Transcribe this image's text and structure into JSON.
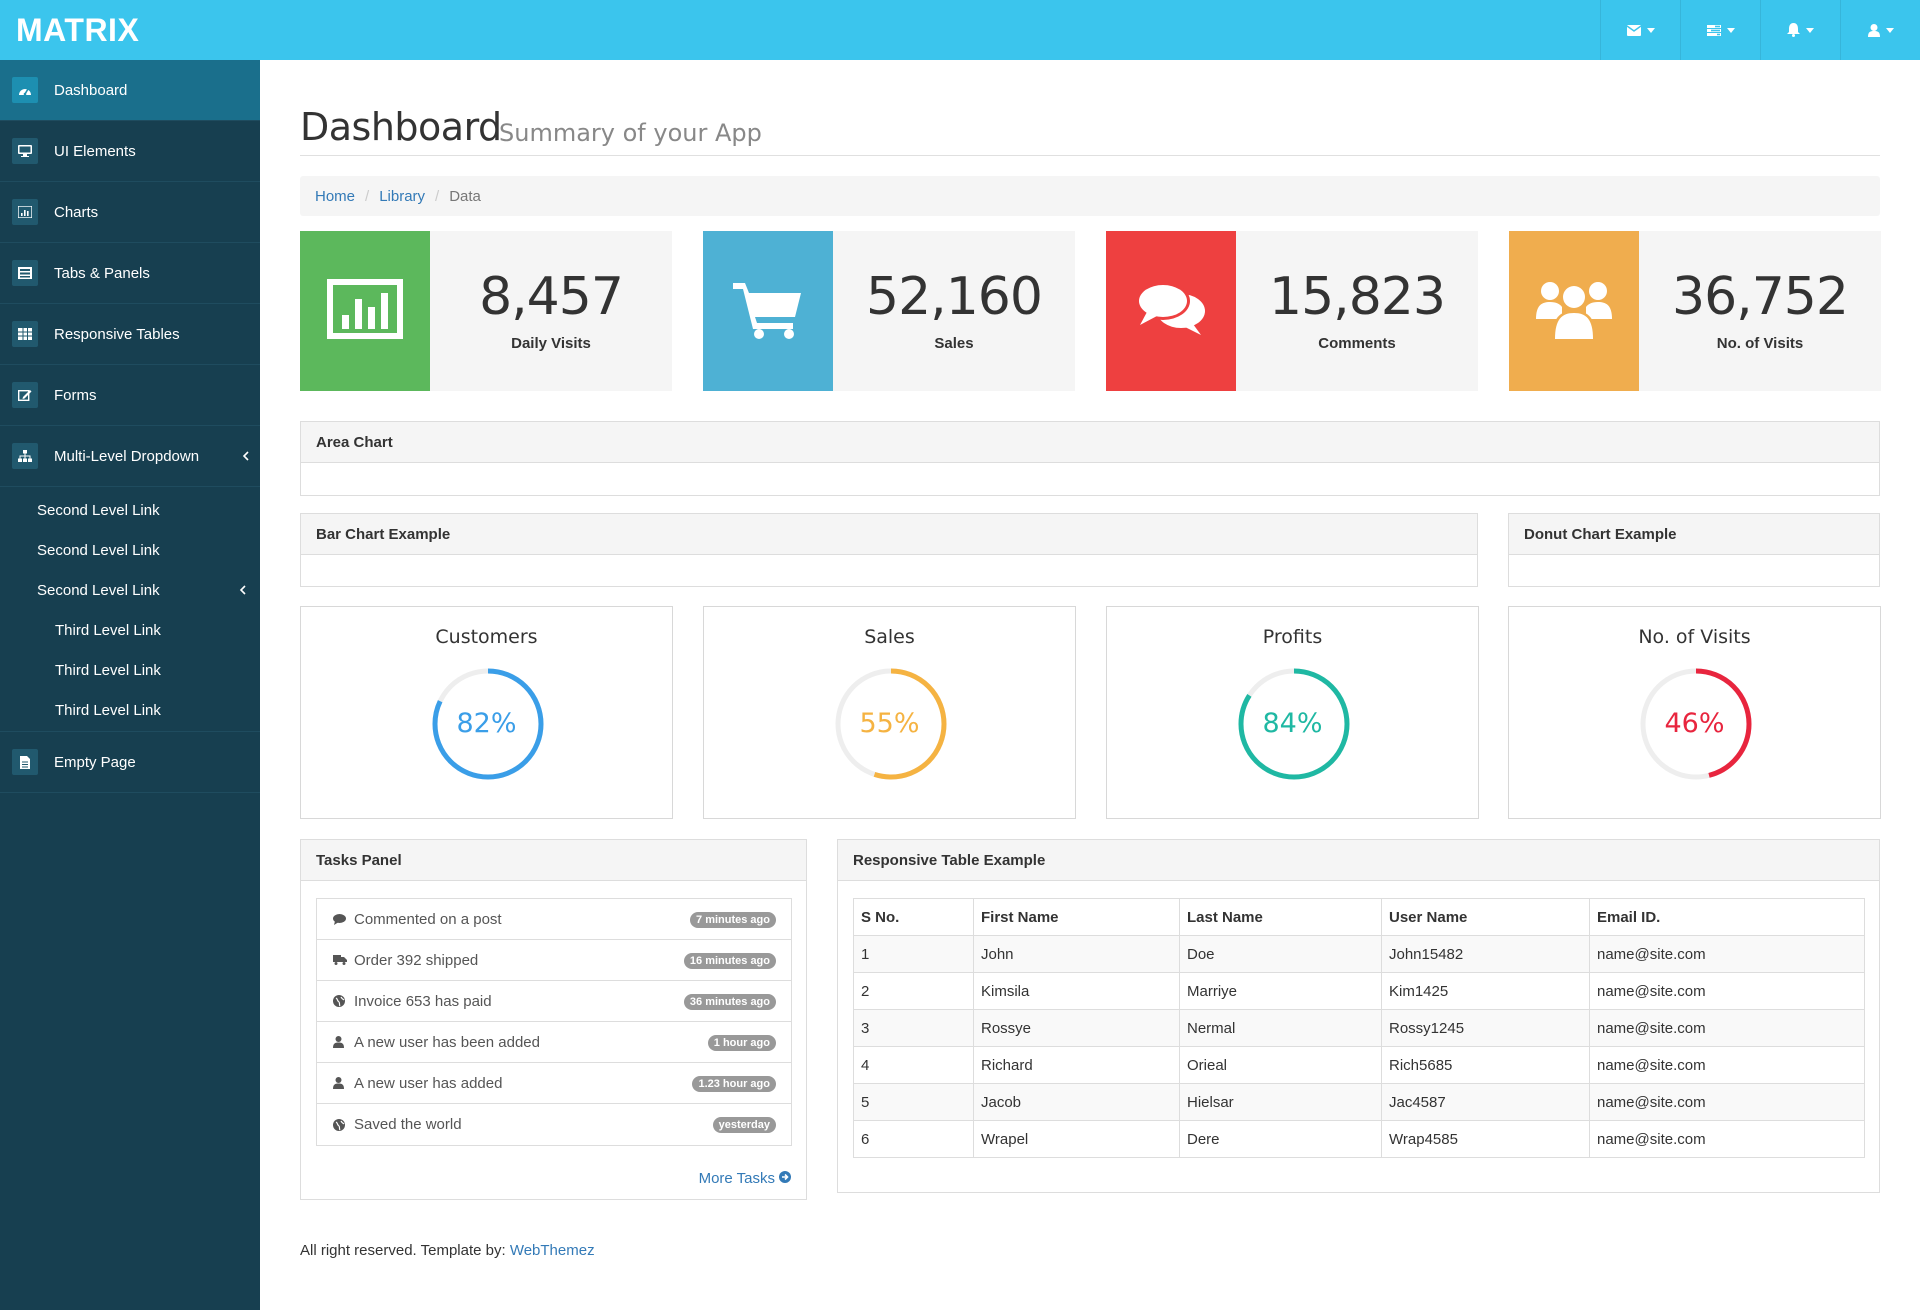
{
  "app": {
    "brand": "MATRIX"
  },
  "topnav": [
    {
      "icon": "envelope-icon"
    },
    {
      "icon": "tasks-icon"
    },
    {
      "icon": "bell-icon"
    },
    {
      "icon": "user-icon"
    }
  ],
  "sidebar": {
    "items": [
      {
        "label": "Dashboard",
        "icon": "dashboard-icon",
        "active": true
      },
      {
        "label": "UI Elements",
        "icon": "desktop-icon"
      },
      {
        "label": "Charts",
        "icon": "bar-chart-icon"
      },
      {
        "label": "Tabs & Panels",
        "icon": "panels-icon"
      },
      {
        "label": "Responsive Tables",
        "icon": "table-icon"
      },
      {
        "label": "Forms",
        "icon": "edit-icon"
      },
      {
        "label": "Multi-Level Dropdown",
        "icon": "sitemap-icon"
      },
      {
        "label": "Empty Page",
        "icon": "file-icon"
      }
    ],
    "second_level": [
      "Second Level Link",
      "Second Level Link",
      "Second Level Link"
    ],
    "third_level": [
      "Third Level Link",
      "Third Level Link",
      "Third Level Link"
    ]
  },
  "header": {
    "title": "Dashboard",
    "subtitle": "Summary of your App"
  },
  "breadcrumb": {
    "home": "Home",
    "library": "Library",
    "current": "Data",
    "separator": "/"
  },
  "stats": [
    {
      "value": "8,457",
      "label": "Daily Visits",
      "color": "#5cb85c",
      "icon": "bar-chart-icon"
    },
    {
      "value": "52,160",
      "label": "Sales",
      "color": "#4eb1d4",
      "icon": "shopping-cart-icon"
    },
    {
      "value": "15,823",
      "label": "Comments",
      "color": "#ee4040",
      "icon": "comments-icon"
    },
    {
      "value": "36,752",
      "label": "No. of Visits",
      "color": "#f0ad4e",
      "icon": "users-icon"
    }
  ],
  "panels": {
    "area_chart": "Area Chart",
    "bar_chart": "Bar Chart Example",
    "donut_chart": "Donut Chart Example",
    "tasks": "Tasks Panel",
    "table": "Responsive Table Example"
  },
  "gauges": [
    {
      "title": "Customers",
      "value": 82,
      "label": "82%",
      "color": "#3a9ee8"
    },
    {
      "title": "Sales",
      "value": 55,
      "label": "55%",
      "color": "#f5b342"
    },
    {
      "title": "Profits",
      "value": 84,
      "label": "84%",
      "color": "#1fb8a3"
    },
    {
      "title": "No. of Visits",
      "value": 46,
      "label": "46%",
      "color": "#e8253e"
    }
  ],
  "tasks": [
    {
      "icon": "comment-icon",
      "text": "Commented on a post",
      "time": "7 minutes ago"
    },
    {
      "icon": "truck-icon",
      "text": "Order 392 shipped",
      "time": "16 minutes ago"
    },
    {
      "icon": "globe-icon",
      "text": "Invoice 653 has paid",
      "time": "36 minutes ago"
    },
    {
      "icon": "user-icon",
      "text": "A new user has been added",
      "time": "1 hour ago"
    },
    {
      "icon": "user-icon",
      "text": "A new user has added",
      "time": "1.23 hour ago"
    },
    {
      "icon": "globe-icon",
      "text": "Saved the world",
      "time": "yesterday"
    }
  ],
  "more_tasks": "More Tasks",
  "table": {
    "headers": [
      "S No.",
      "First Name",
      "Last Name",
      "User Name",
      "Email ID."
    ],
    "rows": [
      [
        "1",
        "John",
        "Doe",
        "John15482",
        "name@site.com"
      ],
      [
        "2",
        "Kimsila",
        "Marriye",
        "Kim1425",
        "name@site.com"
      ],
      [
        "3",
        "Rossye",
        "Nermal",
        "Rossy1245",
        "name@site.com"
      ],
      [
        "4",
        "Richard",
        "Orieal",
        "Rich5685",
        "name@site.com"
      ],
      [
        "5",
        "Jacob",
        "Hielsar",
        "Jac4587",
        "name@site.com"
      ],
      [
        "6",
        "Wrapel",
        "Dere",
        "Wrap4585",
        "name@site.com"
      ]
    ]
  },
  "footer": {
    "text": "All right reserved. Template by: ",
    "link": "WebThemez"
  }
}
